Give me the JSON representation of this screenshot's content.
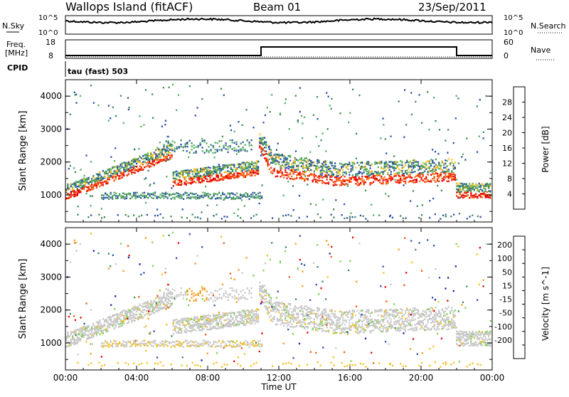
{
  "header": {
    "title": "Wallops Island (fitACF)",
    "beam": "Beam 01",
    "date": "23/Sep/2011"
  },
  "noise_panel": {
    "left_label": "N.Sky",
    "left_ticks": [
      "10^5",
      "10^0"
    ],
    "right_label": "N.Search",
    "right_ticks": [
      "10^5",
      "10^0"
    ]
  },
  "freq_panel": {
    "left_label_1": "Freq.",
    "left_label_2": "[MHz]",
    "left_ticks": [
      "18",
      "8"
    ],
    "right_label": "Nave",
    "right_ticks": [
      "60",
      "0"
    ]
  },
  "cpid": {
    "label": "CPID",
    "value": "tau (fast) 503"
  },
  "colors": {
    "power": [
      "#0000ff",
      "#2a4fa8",
      "#3f8a5a",
      "#55b062",
      "#f2c01e",
      "#f59a1a",
      "#f56a14",
      "#f02a0a",
      "#e60000"
    ],
    "velocity": [
      "#e60000",
      "#f05a0a",
      "#f59a1a",
      "#f2c01e",
      "#c9c9c9",
      "#7fd04a",
      "#3f8a5a",
      "#2a4fa8",
      "#1a1aa8"
    ]
  },
  "chart_data": [
    {
      "type": "heatmap",
      "title": "",
      "xlabel": "Time UT",
      "ylabel": "Slant Range [km]",
      "xticks": [
        "00:00",
        "04:00",
        "08:00",
        "12:00",
        "16:00",
        "20:00",
        "00:00"
      ],
      "xlim_hours": [
        0,
        24
      ],
      "yticks": [
        "1000",
        "2000",
        "3000",
        "4000"
      ],
      "ylim_km": [
        180,
        4500
      ],
      "colorbar": {
        "label": "Power [dB]",
        "ticks": [
          "4",
          "8",
          "12",
          "16",
          "20",
          "24",
          "28"
        ],
        "range": [
          0,
          30
        ]
      }
    },
    {
      "type": "heatmap",
      "title": "",
      "xlabel": "Time UT",
      "ylabel": "Slant Range [km]",
      "xticks": [
        "00:00",
        "04:00",
        "08:00",
        "12:00",
        "16:00",
        "20:00",
        "00:00"
      ],
      "xlim_hours": [
        0,
        24
      ],
      "yticks": [
        "1000",
        "2000",
        "3000",
        "4000"
      ],
      "ylim_km": [
        180,
        4500
      ],
      "colorbar": {
        "label": "Velocity [m s^-1]",
        "ticks": [
          "200",
          "100",
          "50",
          "15",
          "-15",
          "-50",
          "-100",
          "-200"
        ]
      }
    }
  ],
  "x_axis_title": "Time UT",
  "freq_series": {
    "x_hours": [
      0,
      11,
      11,
      22,
      22,
      24
    ],
    "freq_mhz": [
      10,
      10,
      16,
      16,
      10,
      10
    ]
  }
}
